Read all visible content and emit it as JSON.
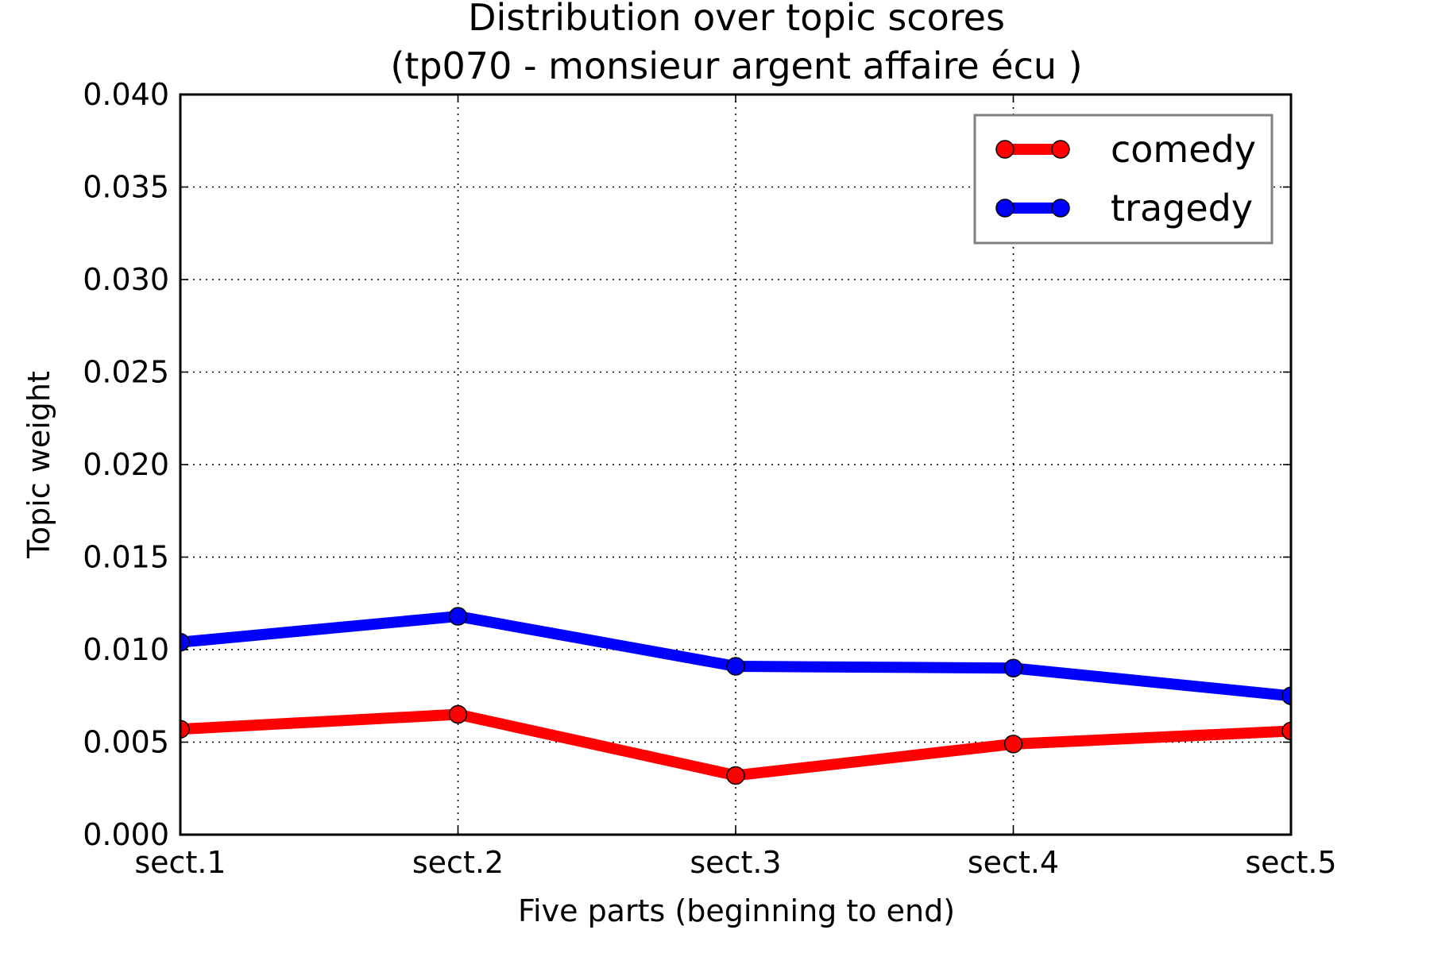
{
  "chart_data": {
    "type": "line",
    "title": "Distribution over topic scores",
    "subtitle": "(tp070 - monsieur argent affaire écu )",
    "xlabel": "Five parts (beginning to end)",
    "ylabel": "Topic weight",
    "categories": [
      "sect.1",
      "sect.2",
      "sect.3",
      "sect.4",
      "sect.5"
    ],
    "ylim": [
      0.0,
      0.04
    ],
    "yticks": [
      "0.000",
      "0.005",
      "0.010",
      "0.015",
      "0.020",
      "0.025",
      "0.030",
      "0.035",
      "0.040"
    ],
    "grid": true,
    "legend_position": "top-right",
    "series": [
      {
        "name": "comedy",
        "color": "#ff0000",
        "values": [
          0.0057,
          0.0065,
          0.0032,
          0.0049,
          0.0056
        ]
      },
      {
        "name": "tragedy",
        "color": "#0000ff",
        "values": [
          0.0104,
          0.0118,
          0.0091,
          0.009,
          0.0075
        ]
      }
    ]
  }
}
